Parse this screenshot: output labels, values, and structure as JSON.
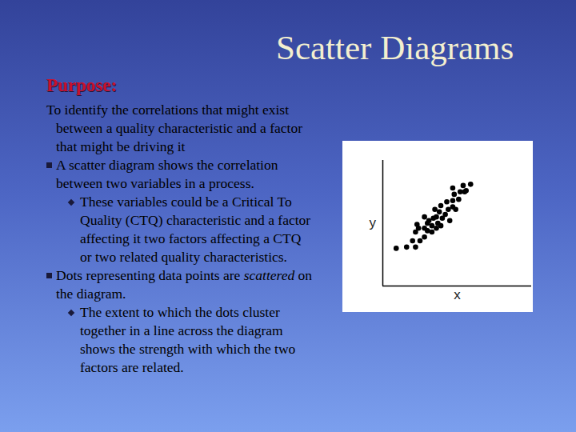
{
  "slide": {
    "title": "Scatter Diagrams",
    "heading": "Purpose:",
    "intro": "To identify the correlations that might exist between a quality characteristic and a factor that might be driving it",
    "bullets": [
      {
        "parts": [
          {
            "text": "A scatter diagram shows the correlation between two variables in a process."
          }
        ],
        "sub": [
          "These variables could be a Critical To Quality (CTQ) characteristic and a factor affecting it two factors affecting a CTQ or two related quality characteristics."
        ]
      },
      {
        "parts": [
          {
            "text": "Dots representing data points are "
          },
          {
            "text": "scattered",
            "italic": true
          },
          {
            "text": " on the diagram."
          }
        ],
        "sub": [
          "The extent to which the dots cluster together in a line across the diagram shows the strength with which the two factors are related."
        ]
      }
    ]
  },
  "chart_data": {
    "type": "scatter",
    "xlabel": "x",
    "ylabel": "y",
    "x": [
      0.9,
      1.6,
      2.2,
      2.5,
      2.2,
      2.8,
      3.0,
      3.3,
      3.6,
      3.3,
      3.9,
      2.8,
      3.4,
      2.8,
      3.8,
      4.2,
      4.4,
      4.7,
      4.9,
      3.9,
      4.3,
      4.7,
      5.1,
      5.2,
      5.5,
      4.8,
      5.9,
      5.4,
      4.7,
      3.6,
      2.4,
      2.0,
      2.3,
      3.5,
      4.0,
      4.5,
      3.1,
      3.7,
      3.0,
      5.6
    ],
    "values": [
      3.0,
      3.1,
      3.1,
      3.6,
      4.3,
      3.9,
      4.4,
      4.3,
      4.6,
      4.8,
      4.8,
      4.6,
      5.4,
      5.5,
      5.9,
      5.7,
      6.1,
      6.3,
      6.1,
      6.4,
      6.7,
      6.8,
      6.9,
      7.5,
      7.5,
      7.3,
      8.1,
      8.0,
      7.8,
      5.5,
      4.6,
      3.6,
      4.9,
      6.1,
      5.4,
      5.2,
      5.2,
      5.0,
      5.0,
      7.6
    ],
    "xlim": [
      0,
      10
    ],
    "ylim": [
      0,
      10
    ],
    "tick_labels": false,
    "color": "#000000",
    "marker": "circle"
  }
}
